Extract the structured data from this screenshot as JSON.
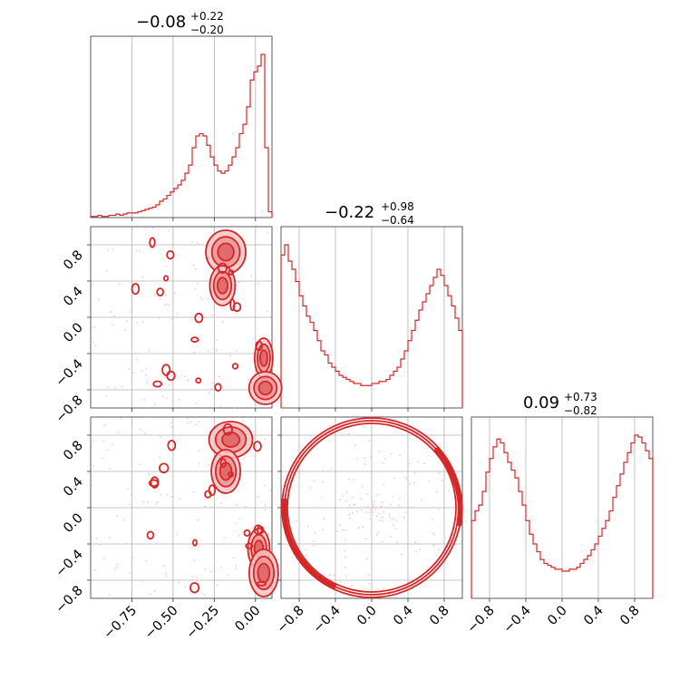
{
  "colors": {
    "main": "#d62728",
    "fill_light": "#f4c6c6",
    "fill_mid": "#eb9597",
    "fill_dark": "#e06264",
    "scatter": "#f7c6c8"
  },
  "chart_data": {
    "type": "corner",
    "grid": true,
    "parameters": [
      {
        "index": 0,
        "title_value": "−0.08",
        "title_plus": "+0.22",
        "title_minus": "−0.20",
        "range": [
          -1.0,
          0.1
        ]
      },
      {
        "index": 1,
        "title_value": "−0.22",
        "title_plus": "+0.98",
        "title_minus": "−0.64",
        "range": [
          -1.0,
          1.0
        ]
      },
      {
        "index": 2,
        "title_value": "0.09",
        "title_plus": "+0.73",
        "title_minus": "−0.82",
        "range": [
          -1.0,
          1.0
        ]
      }
    ],
    "ticks": {
      "p0": {
        "values": [
          -0.75,
          -0.5,
          -0.25,
          0.0
        ],
        "labels": [
          "−0.75",
          "−0.50",
          "−0.25",
          "0.00"
        ]
      },
      "pm": {
        "values": [
          -0.8,
          -0.4,
          0.0,
          0.4,
          0.8
        ],
        "labels": [
          "−0.8",
          "−0.4",
          "0.0",
          "0.4",
          "0.8"
        ]
      }
    },
    "histograms": [
      {
        "parameter": 0,
        "x_range": [
          -1.0,
          0.1
        ],
        "counts": [
          1,
          1,
          2,
          1,
          1,
          2,
          2,
          3,
          2,
          3,
          4,
          4,
          4,
          5,
          6,
          7,
          8,
          9,
          11,
          14,
          16,
          19,
          22,
          25,
          28,
          32,
          38,
          45,
          60,
          70,
          72,
          70,
          62,
          52,
          45,
          40,
          38,
          40,
          45,
          52,
          60,
          72,
          80,
          95,
          118,
          125,
          130,
          140,
          60,
          5
        ]
      },
      {
        "parameter": 1,
        "x_range": [
          -1.0,
          1.0
        ],
        "counts": [
          75,
          80,
          72,
          68,
          62,
          55,
          50,
          45,
          42,
          38,
          33,
          28,
          26,
          22,
          20,
          18,
          16,
          15,
          14,
          13,
          12,
          12,
          11,
          11,
          11,
          12,
          12,
          13,
          13,
          14,
          16,
          18,
          20,
          24,
          28,
          33,
          38,
          43,
          48,
          52,
          56,
          60,
          64,
          68,
          65,
          60,
          55,
          50,
          44,
          38
        ]
      },
      {
        "parameter": 2,
        "x_range": [
          -1.0,
          1.0
        ],
        "counts": [
          40,
          45,
          48,
          55,
          65,
          72,
          78,
          82,
          80,
          75,
          70,
          66,
          62,
          55,
          48,
          40,
          33,
          28,
          24,
          20,
          18,
          17,
          16,
          15,
          15,
          14,
          14,
          15,
          15,
          16,
          18,
          20,
          22,
          25,
          28,
          32,
          36,
          40,
          45,
          52,
          58,
          64,
          70,
          75,
          80,
          84,
          83,
          80,
          76,
          72
        ]
      }
    ],
    "contour_panels": [
      {
        "x_parameter": 0,
        "y_parameter": 1,
        "levels": 3,
        "dense_regions": [
          "x ≈ −0.18, y > 0.5",
          "x ≈ 0.05, y < −0.5"
        ]
      },
      {
        "x_parameter": 0,
        "y_parameter": 2,
        "levels": 3,
        "dense_regions": [
          "x ≈ −0.15, y > 0.3",
          "x ≈ 0.05, y < −0.3"
        ]
      },
      {
        "x_parameter": 1,
        "y_parameter": 2,
        "levels": 3,
        "shape": "ring",
        "ring_radius": 1.0
      }
    ]
  }
}
